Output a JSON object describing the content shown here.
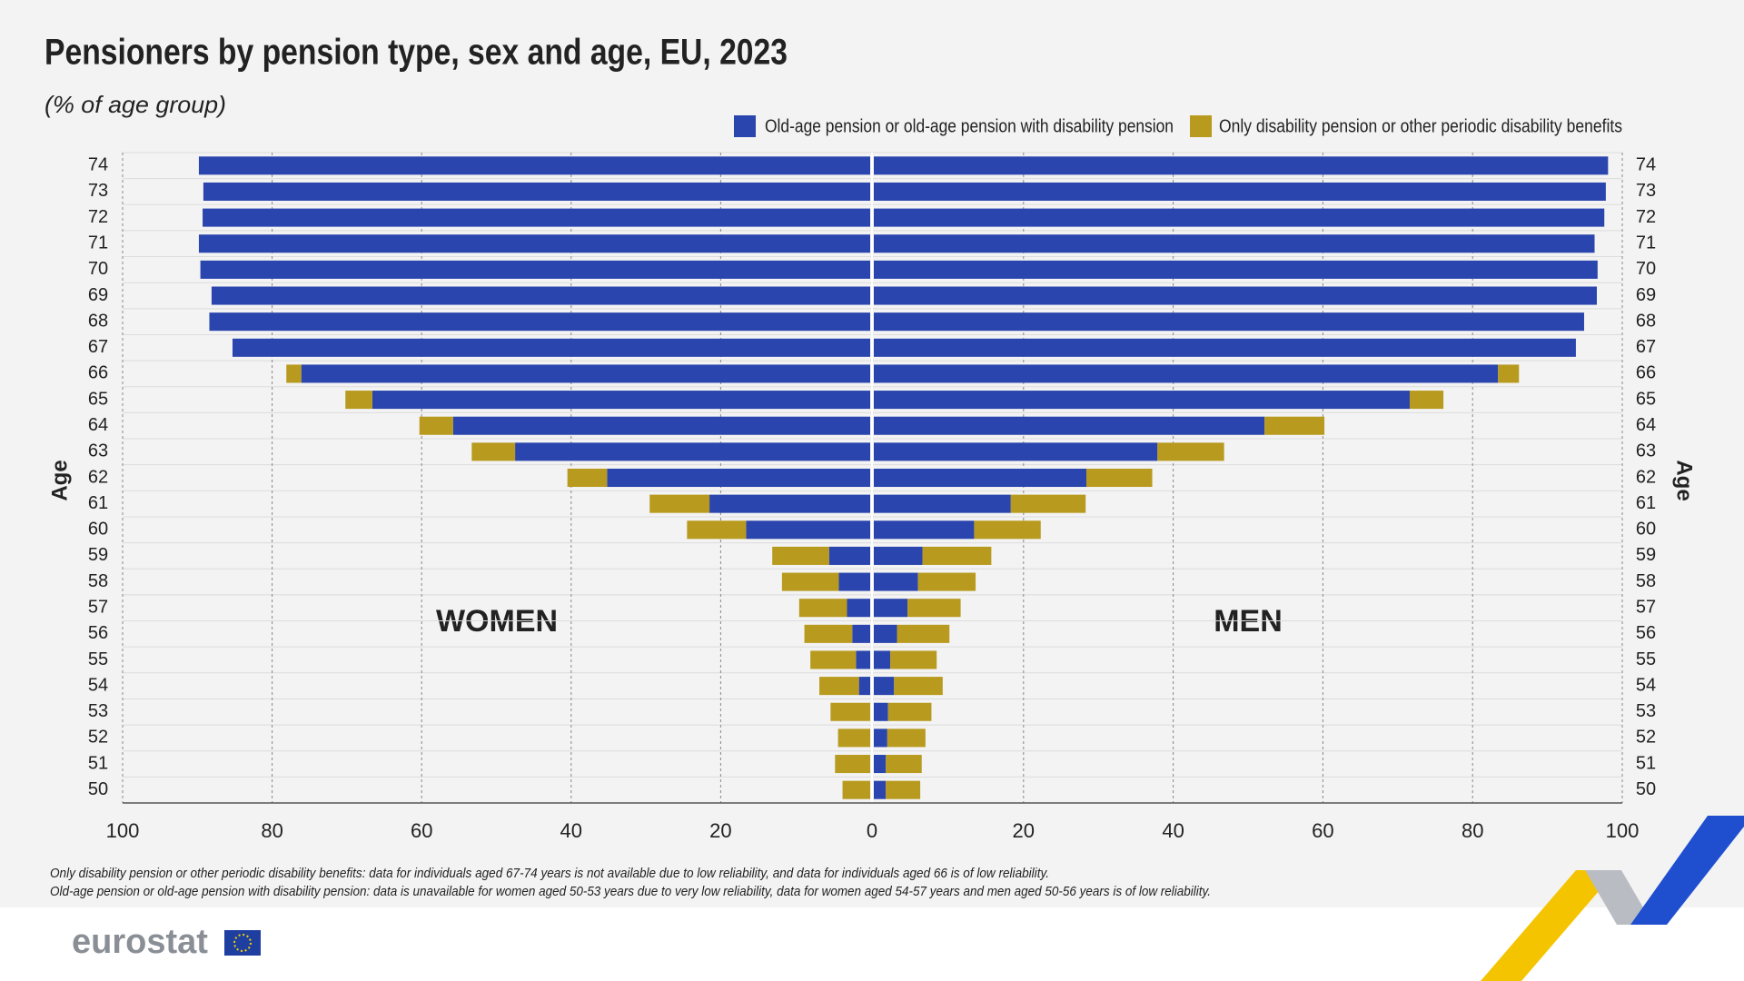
{
  "chart_data": {
    "type": "pyramid",
    "title": "Pensioners by pension type, sex and age, EU, 2023",
    "subtitle": "(% of age group)",
    "y_label": "Age",
    "annotations": [
      "WOMEN",
      "MEN"
    ],
    "categories": [
      "74",
      "73",
      "72",
      "71",
      "70",
      "69",
      "68",
      "67",
      "66",
      "65",
      "64",
      "63",
      "62",
      "61",
      "60",
      "59",
      "58",
      "57",
      "56",
      "55",
      "54",
      "53",
      "52",
      "51",
      "50"
    ],
    "series": [
      {
        "name": "Old-age pension or old-age pension with disability pension",
        "color": "#2a45ad",
        "women": [
          89.8,
          89.2,
          89.3,
          89.8,
          89.6,
          88.1,
          88.4,
          85.3,
          76.1,
          66.6,
          55.8,
          47.5,
          35.2,
          21.5,
          16.6,
          5.5,
          4.2,
          3.1,
          2.4,
          1.9,
          1.5,
          null,
          null,
          null,
          null
        ],
        "men": [
          98.1,
          97.8,
          97.6,
          96.3,
          96.7,
          96.6,
          94.9,
          93.8,
          83.4,
          71.6,
          52.2,
          37.9,
          28.4,
          18.3,
          13.4,
          6.5,
          5.9,
          4.5,
          3.1,
          2.2,
          2.7,
          1.9,
          1.8,
          1.6,
          1.6
        ]
      },
      {
        "name": "Only disability pension or other periodic disability benefits",
        "color": "#b89a1e",
        "women": [
          null,
          null,
          null,
          null,
          null,
          null,
          null,
          null,
          2.0,
          3.6,
          4.5,
          5.8,
          5.3,
          8.0,
          7.9,
          7.6,
          7.6,
          6.4,
          6.4,
          6.1,
          5.3,
          5.3,
          4.3,
          4.7,
          3.7
        ],
        "men": [
          null,
          null,
          null,
          null,
          null,
          null,
          null,
          null,
          2.8,
          4.5,
          8.0,
          8.9,
          8.8,
          10.0,
          8.9,
          9.2,
          7.7,
          7.1,
          7.0,
          6.2,
          6.5,
          5.8,
          5.1,
          4.8,
          4.6
        ]
      }
    ],
    "xlim": [
      0,
      100
    ],
    "xticks": [
      0,
      20,
      40,
      60,
      80,
      100
    ],
    "grid": true,
    "notes": [
      "Only disability pension or other periodic disability benefits: data for individuals aged 67-74 years is not available due to low reliability, and data for individuals aged 66 is of low reliability.",
      "Old-age pension or old-age pension with disability pension: data is unavailable for women aged 50-53 years due to very low reliability, data for women aged 54-57 years and men aged 50-56 years is of low reliability."
    ],
    "brand": "eurostat"
  }
}
